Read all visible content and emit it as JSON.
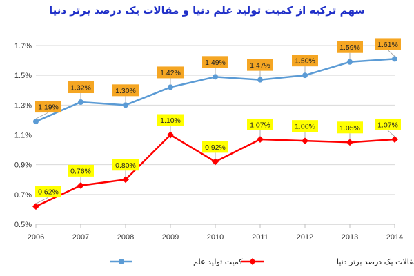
{
  "chart_data": {
    "type": "line",
    "title": "سهم ترکیه از کمیت تولید علم دنیا و مقالات یک درصد برتر دنیا",
    "x": [
      "2006",
      "2007",
      "2008",
      "2009",
      "2010",
      "2011",
      "2012",
      "2013",
      "2014"
    ],
    "series": [
      {
        "name": "کمیت تولید علم",
        "values": [
          1.19,
          1.32,
          1.3,
          1.42,
          1.49,
          1.47,
          1.5,
          1.59,
          1.61
        ],
        "labels": [
          "1.19%",
          "1.32%",
          "1.30%",
          "1.42%",
          "1.49%",
          "1.47%",
          "1.50%",
          "1.59%",
          "1.61%"
        ],
        "color": "#5b9bd5",
        "label_bg": "#f5a623",
        "marker": "circle"
      },
      {
        "name": "مقالات یک درصد برتر دنیا",
        "values": [
          0.62,
          0.76,
          0.8,
          1.1,
          0.92,
          1.07,
          1.06,
          1.05,
          1.07
        ],
        "labels": [
          "0.62%",
          "0.76%",
          "0.80%",
          "1.10%",
          "0.92%",
          "1.07%",
          "1.06%",
          "1.05%",
          "1.07%"
        ],
        "color": "#ff0000",
        "label_bg": "#ffff00",
        "marker": "diamond"
      }
    ],
    "y_ticks": [
      0.5,
      0.7,
      0.9,
      1.1,
      1.3,
      1.5,
      1.7
    ],
    "y_tick_labels": [
      "0.5%",
      "0.7%",
      "0.9%",
      "1.1%",
      "1.3%",
      "1.5%",
      "1.7%"
    ],
    "ylim": [
      0.5,
      1.7
    ],
    "xlabel": "",
    "ylabel": "",
    "grid": true,
    "legend": "bottom"
  }
}
